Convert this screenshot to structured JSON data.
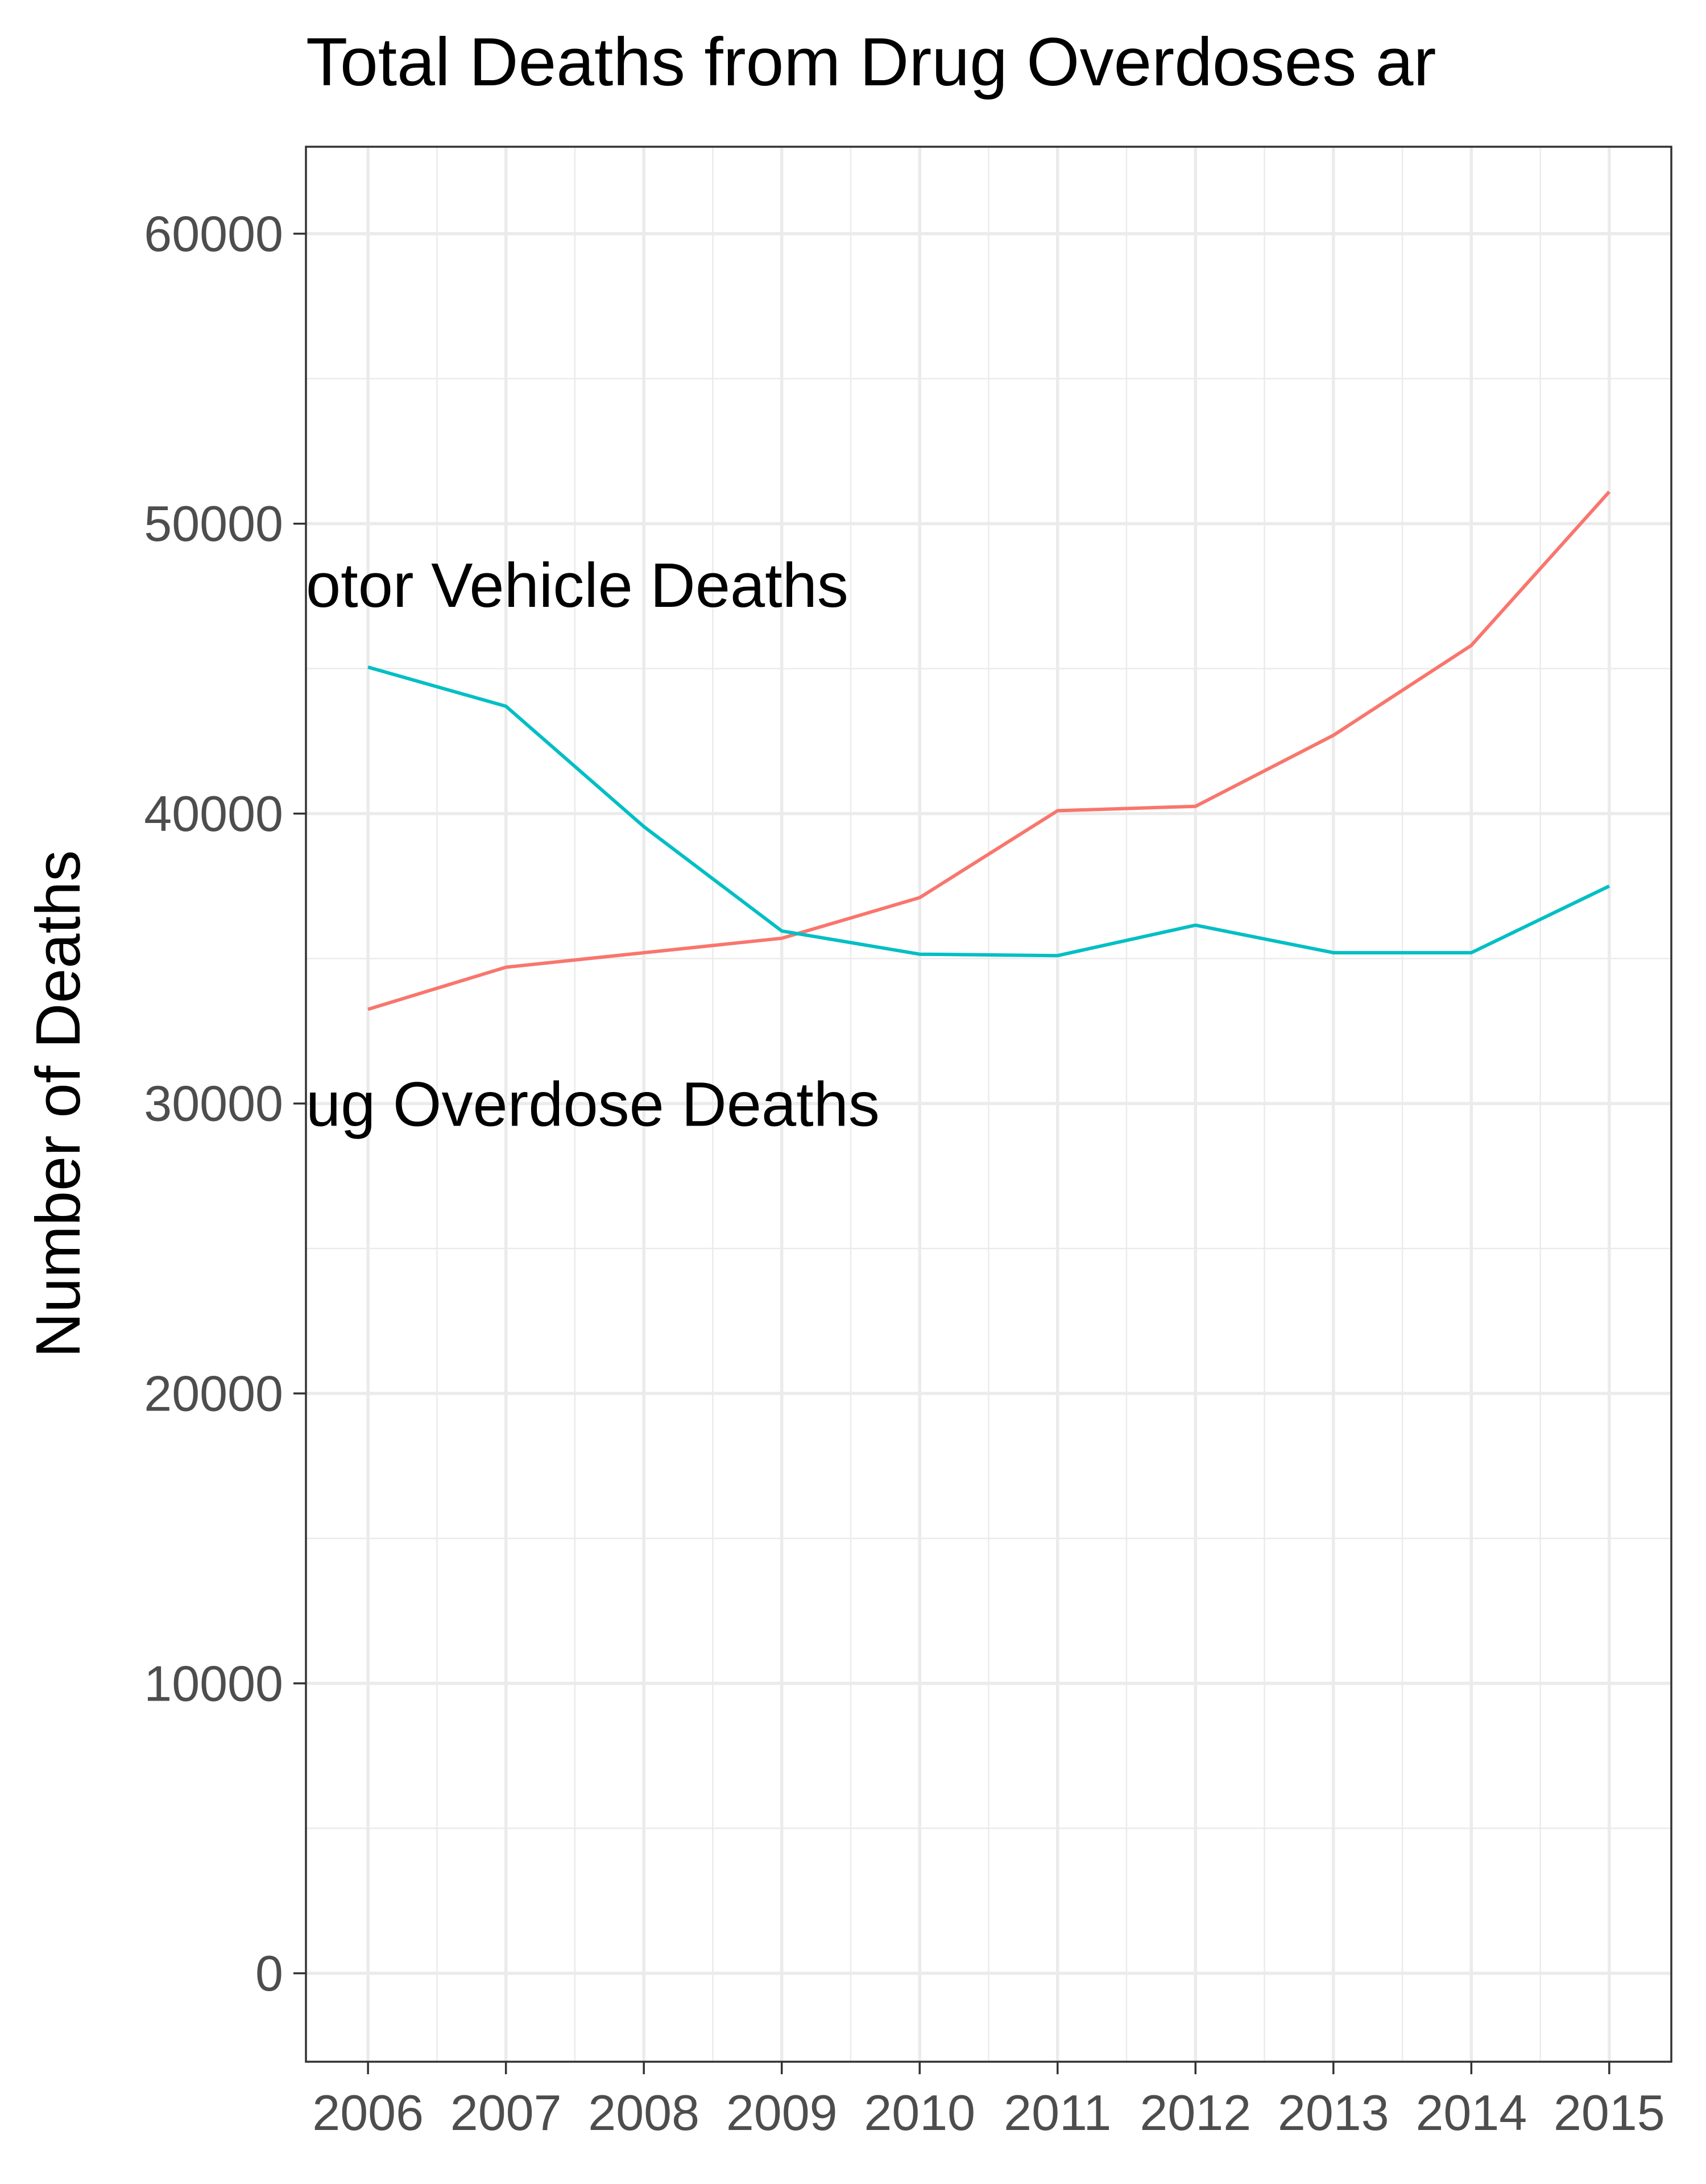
{
  "chart_data": {
    "type": "line",
    "title": "Total Deaths from Drug Overdoses ar",
    "xlabel": "",
    "ylabel": "Number of Deaths",
    "x": [
      2006,
      2007,
      2008,
      2009,
      2010,
      2011,
      2012,
      2013,
      2014,
      2015
    ],
    "xticks": [
      "2006",
      "2007",
      "2008",
      "2009",
      "2010",
      "2011",
      "2012",
      "2013",
      "2014",
      "2015"
    ],
    "yticks": [
      "0",
      "10000",
      "20000",
      "30000",
      "40000",
      "50000",
      "60000"
    ],
    "xlim": [
      2005.55,
      2015.45
    ],
    "ylim": [
      -3050,
      63000
    ],
    "grid": true,
    "legend": "none",
    "series": [
      {
        "color": "#F8766D",
        "values": [
          33250,
          34700,
          35200,
          35700,
          37100,
          40100,
          40250,
          42700,
          45800,
          51100
        ]
      },
      {
        "color": "#00BFC4",
        "values": [
          45050,
          43700,
          39550,
          35950,
          35150,
          35100,
          36150,
          35200,
          35200,
          37500
        ]
      }
    ],
    "annotations": [
      {
        "text": "otor Vehicle Deaths",
        "x": 2005.55,
        "y": 47700
      },
      {
        "text": "ug Overdose Deaths",
        "x": 2005.55,
        "y": 29800
      }
    ]
  }
}
